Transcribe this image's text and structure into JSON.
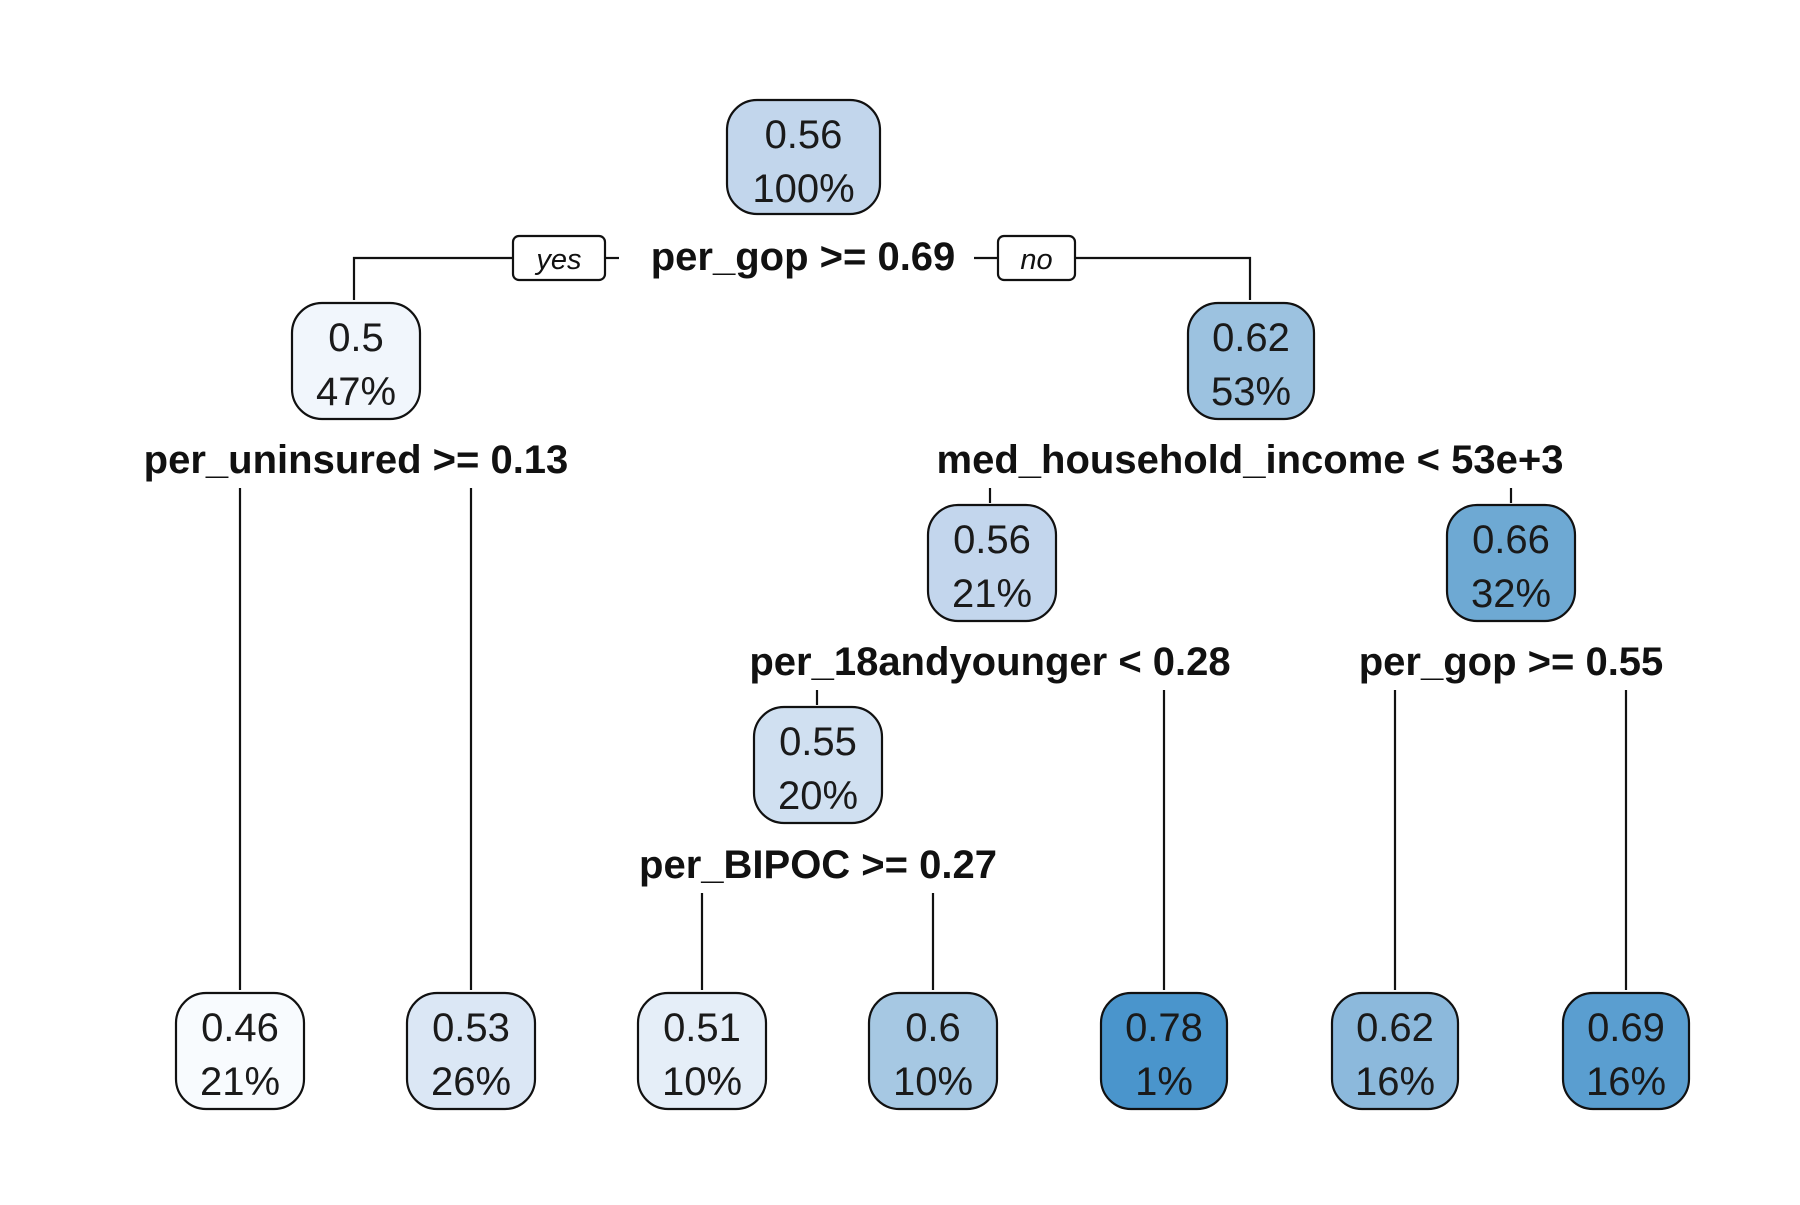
{
  "tree": {
    "nodes": {
      "root": {
        "value": "0.56",
        "pct": "100%",
        "fill": "#c2d6ec"
      },
      "n2": {
        "value": "0.5",
        "pct": "47%",
        "fill": "#f1f6fc"
      },
      "n3": {
        "value": "0.62",
        "pct": "53%",
        "fill": "#9cc2e0"
      },
      "n6": {
        "value": "0.56",
        "pct": "21%",
        "fill": "#c3d6ed"
      },
      "n7": {
        "value": "0.66",
        "pct": "32%",
        "fill": "#6ea9d3"
      },
      "n12": {
        "value": "0.55",
        "pct": "20%",
        "fill": "#d0e0f1"
      },
      "l4": {
        "value": "0.46",
        "pct": "21%",
        "fill": "#f8fbfe"
      },
      "l5": {
        "value": "0.53",
        "pct": "26%",
        "fill": "#dbe7f5"
      },
      "l24": {
        "value": "0.51",
        "pct": "10%",
        "fill": "#e5eef8"
      },
      "l25": {
        "value": "0.6",
        "pct": "10%",
        "fill": "#a6c8e3"
      },
      "l13": {
        "value": "0.78",
        "pct": "1%",
        "fill": "#4a95cc"
      },
      "l14": {
        "value": "0.62",
        "pct": "16%",
        "fill": "#8cb9dc"
      },
      "l15": {
        "value": "0.69",
        "pct": "16%",
        "fill": "#5a9ed0"
      }
    },
    "splits": {
      "root": "per_gop >= 0.69",
      "n2": "per_uninsured >= 0.13",
      "n3": "med_household_income < 53e+3",
      "n6": "per_18andyounger < 0.28",
      "n7": "per_gop >= 0.55",
      "n12": "per_BIPOC >= 0.27"
    },
    "branch_labels": {
      "yes": "yes",
      "no": "no"
    }
  }
}
